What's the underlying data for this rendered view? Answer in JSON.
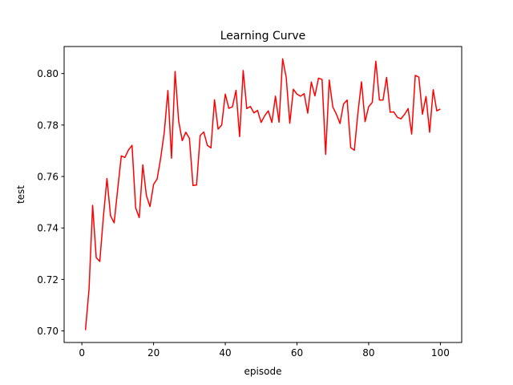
{
  "chart_data": {
    "type": "line",
    "title": "Learning Curve",
    "xlabel": "episode",
    "ylabel": "test",
    "xlim": [
      -4.95,
      105.95
    ],
    "ylim": [
      0.6955,
      0.8105
    ],
    "xticks": [
      0,
      20,
      40,
      60,
      80,
      100
    ],
    "xtick_labels": [
      "0",
      "20",
      "40",
      "60",
      "80",
      "100"
    ],
    "yticks": [
      0.7,
      0.72,
      0.74,
      0.76,
      0.78,
      0.8
    ],
    "ytick_labels": [
      "0.70",
      "0.72",
      "0.74",
      "0.76",
      "0.78",
      "0.80"
    ],
    "grid": false,
    "legend": "none",
    "series": [
      {
        "color": "#ff0000",
        "x": [
          1,
          2,
          3,
          4,
          5,
          6,
          7,
          8,
          9,
          10,
          11,
          12,
          13,
          14,
          15,
          16,
          17,
          18,
          19,
          20,
          21,
          22,
          23,
          24,
          25,
          26,
          27,
          28,
          29,
          30,
          31,
          32,
          33,
          34,
          35,
          36,
          37,
          38,
          39,
          40,
          41,
          42,
          43,
          44,
          45,
          46,
          47,
          48,
          49,
          50,
          51,
          52,
          53,
          54,
          55,
          56,
          57,
          58,
          59,
          60,
          61,
          62,
          63,
          64,
          65,
          66,
          67,
          68,
          69,
          70,
          71,
          72,
          73,
          74,
          75,
          76,
          77,
          78,
          79,
          80,
          81,
          82,
          83,
          84,
          85,
          86,
          87,
          88,
          89,
          90,
          91,
          92,
          93,
          94,
          95,
          96,
          97,
          98,
          99,
          100
        ],
        "values": [
          0.7003,
          0.7162,
          0.7488,
          0.7285,
          0.727,
          0.7443,
          0.7592,
          0.7447,
          0.742,
          0.7551,
          0.768,
          0.7674,
          0.7703,
          0.7721,
          0.7478,
          0.744,
          0.7645,
          0.7526,
          0.7483,
          0.7569,
          0.7591,
          0.7673,
          0.7774,
          0.7934,
          0.7671,
          0.8008,
          0.7815,
          0.7739,
          0.7772,
          0.7748,
          0.7565,
          0.7567,
          0.7759,
          0.7773,
          0.7721,
          0.7711,
          0.7898,
          0.7784,
          0.78,
          0.792,
          0.7865,
          0.7871,
          0.7935,
          0.7755,
          0.8012,
          0.7864,
          0.7872,
          0.7847,
          0.7857,
          0.781,
          0.7836,
          0.7855,
          0.781,
          0.7912,
          0.7811,
          0.8057,
          0.7985,
          0.7807,
          0.7939,
          0.792,
          0.7912,
          0.7922,
          0.7846,
          0.7967,
          0.7913,
          0.7982,
          0.7977,
          0.7686,
          0.7975,
          0.787,
          0.7842,
          0.7806,
          0.7882,
          0.7897,
          0.7712,
          0.7702,
          0.7847,
          0.7968,
          0.7813,
          0.7871,
          0.7888,
          0.8048,
          0.7897,
          0.7897,
          0.7985,
          0.785,
          0.7851,
          0.783,
          0.7824,
          0.7841,
          0.7864,
          0.7765,
          0.7993,
          0.7986,
          0.7842,
          0.7911,
          0.7772,
          0.7937,
          0.7855,
          0.7862
        ]
      }
    ]
  }
}
